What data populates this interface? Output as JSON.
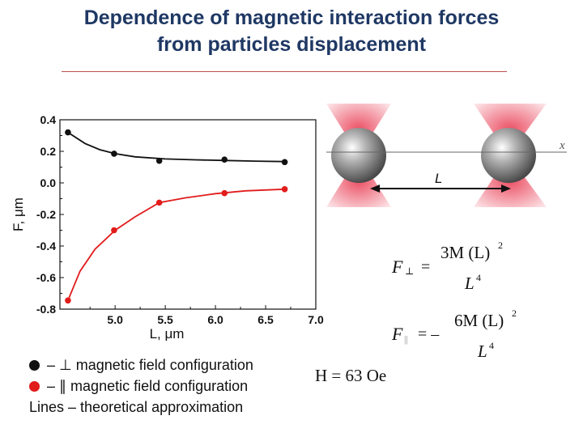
{
  "slide": {
    "title_line1": "Dependence of magnetic interaction forces",
    "title_line2": "from particles displacement"
  },
  "chart_data": {
    "type": "scatter",
    "ylabel": "F, μm",
    "xlabel": "L, μm",
    "xlim": [
      4.45,
      7.0
    ],
    "ylim": [
      -0.8,
      0.4
    ],
    "x_ticks": [
      "5.0",
      "5.5",
      "6.0",
      "6.5",
      "7.0"
    ],
    "y_ticks": [
      "0.4",
      "0.2",
      "0.0",
      "-0.2",
      "-0.4",
      "-0.6",
      "-0.8"
    ],
    "grid": false,
    "series": [
      {
        "name": "⊥ magnetic field configuration",
        "color": "#111111",
        "points": [
          [
            4.53,
            0.32
          ],
          [
            4.99,
            0.185
          ],
          [
            5.44,
            0.14
          ],
          [
            6.09,
            0.148
          ],
          [
            6.69,
            0.132
          ]
        ],
        "fit": [
          [
            4.53,
            0.32
          ],
          [
            4.7,
            0.25
          ],
          [
            4.85,
            0.21
          ],
          [
            5.0,
            0.185
          ],
          [
            5.2,
            0.165
          ],
          [
            5.5,
            0.152
          ],
          [
            5.8,
            0.146
          ],
          [
            6.1,
            0.142
          ],
          [
            6.4,
            0.138
          ],
          [
            6.7,
            0.135
          ]
        ]
      },
      {
        "name": "∥ magnetic field configuration",
        "color": "#e21b1b",
        "points": [
          [
            4.53,
            -0.745
          ],
          [
            4.99,
            -0.3
          ],
          [
            5.44,
            -0.125
          ],
          [
            6.09,
            -0.065
          ],
          [
            6.69,
            -0.04
          ]
        ],
        "fit": [
          [
            4.53,
            -0.745
          ],
          [
            4.65,
            -0.56
          ],
          [
            4.8,
            -0.42
          ],
          [
            5.0,
            -0.3
          ],
          [
            5.2,
            -0.215
          ],
          [
            5.44,
            -0.125
          ],
          [
            5.7,
            -0.095
          ],
          [
            6.0,
            -0.068
          ],
          [
            6.3,
            -0.05
          ],
          [
            6.69,
            -0.04
          ]
        ]
      }
    ]
  },
  "legend": {
    "perp_symbol": "–  ⊥",
    "perp_text": "magnetic field configuration",
    "par_symbol": "–  ∥",
    "par_text": "magnetic field configuration",
    "lines_text": "Lines – theoretical approximation"
  },
  "diagram": {
    "axis_label": "x",
    "distance_label": "L"
  },
  "formulas": {
    "f_perp_lhs": "F",
    "f_perp_sub": "⊥",
    "f_perp_num": "3M (L)",
    "f_perp_num_exp": "2",
    "f_perp_den": "L",
    "f_perp_den_exp": "4",
    "f_par_lhs": "F",
    "f_par_sub": "||",
    "f_par_num": "6M (L)",
    "f_par_num_exp": "2",
    "f_par_den": "L",
    "f_par_den_exp": "4",
    "field": "H = 63 Oe"
  },
  "colors": {
    "title": "#1f3864",
    "rule": "#c0504d",
    "perp": "#111111",
    "par": "#e21b1b",
    "cone": "#e8324a"
  }
}
